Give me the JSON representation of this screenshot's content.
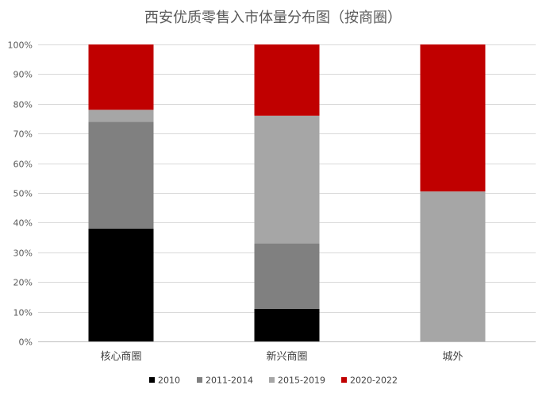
{
  "chart_data": {
    "type": "bar",
    "stacked": true,
    "percent": true,
    "title": "西安优质零售入市体量分布图（按商圈）",
    "categories": [
      "核心商圈",
      "新兴商圈",
      "城外"
    ],
    "series": [
      {
        "name": "2010",
        "color": "#000000",
        "values": [
          38,
          11,
          0
        ]
      },
      {
        "name": "2011-2014",
        "color": "#808080",
        "values": [
          36,
          22,
          0
        ]
      },
      {
        "name": "2015-2019",
        "color": "#a6a6a6",
        "values": [
          4,
          43,
          50.5
        ]
      },
      {
        "name": "2020-2022",
        "color": "#c00000",
        "values": [
          22,
          24,
          49.5
        ]
      }
    ],
    "yticks": [
      "0%",
      "10%",
      "20%",
      "30%",
      "40%",
      "50%",
      "60%",
      "70%",
      "80%",
      "90%",
      "100%"
    ],
    "ylim": [
      0,
      100
    ],
    "grid": true,
    "legend": "bottom"
  }
}
